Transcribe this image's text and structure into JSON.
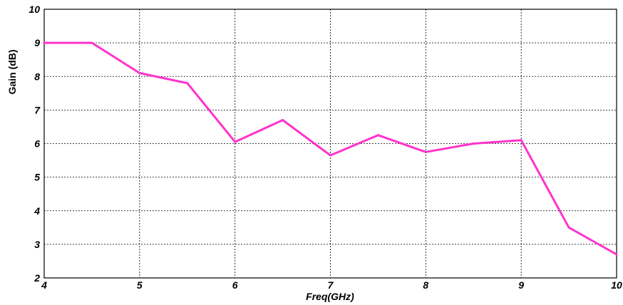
{
  "chart_data": {
    "type": "line",
    "title": "",
    "xlabel": "Freq(GHz)",
    "ylabel": "Gain (dB)",
    "xlim": [
      4,
      10
    ],
    "ylim": [
      2,
      10
    ],
    "xticks": [
      "4",
      "5",
      "6",
      "7",
      "8",
      "9",
      "10"
    ],
    "yticks": [
      "2",
      "3",
      "4",
      "5",
      "6",
      "7",
      "8",
      "9",
      "10"
    ],
    "grid": true,
    "series": [
      {
        "color": "#ff33cc",
        "x": [
          4,
          4.5,
          5,
          5.5,
          6,
          6.5,
          7,
          7.5,
          8,
          8.5,
          9,
          9.5,
          10
        ],
        "y": [
          9.0,
          9.0,
          8.1,
          7.8,
          6.05,
          6.7,
          5.65,
          6.25,
          5.75,
          6.0,
          6.1,
          3.5,
          2.7
        ]
      }
    ]
  }
}
